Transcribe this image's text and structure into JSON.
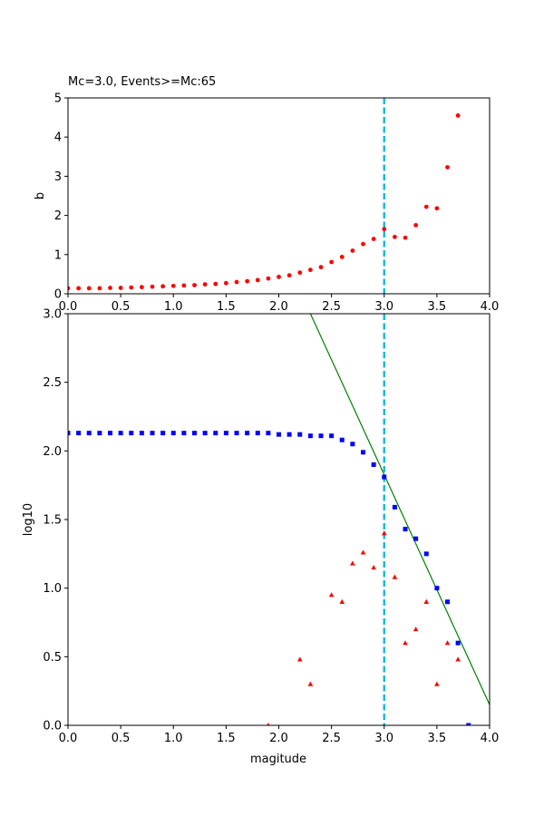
{
  "chart_data": [
    {
      "type": "scatter",
      "title": "Mc=3.0, Events>=Mc:65",
      "xlabel": "",
      "ylabel": "b",
      "xlim": [
        0,
        4
      ],
      "ylim": [
        0,
        5
      ],
      "xticks": [
        "0.0",
        "0.5",
        "1.0",
        "1.5",
        "2.0",
        "2.5",
        "3.0",
        "3.5",
        "4.0"
      ],
      "yticks": [
        "0",
        "1",
        "2",
        "3",
        "4",
        "5"
      ],
      "vline": {
        "x": 3.0,
        "color": "#17becf",
        "style": "dashed"
      },
      "series": [
        {
          "marker": "dot",
          "color": "#ff0000",
          "x": [
            0.0,
            0.1,
            0.2,
            0.3,
            0.4,
            0.5,
            0.6,
            0.7,
            0.8,
            0.9,
            1.0,
            1.1,
            1.2,
            1.3,
            1.4,
            1.5,
            1.6,
            1.7,
            1.8,
            1.9,
            2.0,
            2.1,
            2.2,
            2.3,
            2.4,
            2.5,
            2.6,
            2.7,
            2.8,
            2.9,
            3.0,
            3.1,
            3.2,
            3.3,
            3.4,
            3.5,
            3.6,
            3.7
          ],
          "y": [
            0.14,
            0.14,
            0.14,
            0.14,
            0.15,
            0.15,
            0.16,
            0.17,
            0.18,
            0.19,
            0.2,
            0.21,
            0.22,
            0.24,
            0.25,
            0.27,
            0.3,
            0.32,
            0.35,
            0.39,
            0.43,
            0.47,
            0.54,
            0.61,
            0.68,
            0.81,
            0.94,
            1.1,
            1.27,
            1.4,
            1.65,
            1.45,
            1.43,
            1.75,
            2.22,
            2.18,
            3.23,
            4.55
          ]
        }
      ]
    },
    {
      "type": "scatter",
      "title": "",
      "xlabel": "magitude",
      "ylabel": "log10",
      "xlim": [
        0,
        4
      ],
      "ylim": [
        0,
        3
      ],
      "xticks": [
        "0.0",
        "0.5",
        "1.0",
        "1.5",
        "2.0",
        "2.5",
        "3.0",
        "3.5",
        "4.0"
      ],
      "yticks": [
        "0.0",
        "0.5",
        "1.0",
        "1.5",
        "2.0",
        "2.5",
        "3.0"
      ],
      "vline": {
        "x": 3.0,
        "color": "#17becf",
        "style": "dashed"
      },
      "fit_line": {
        "color": "#008000",
        "x": [
          2.3,
          4.0
        ],
        "y": [
          3.0,
          0.15
        ]
      },
      "series": [
        {
          "marker": "square",
          "color": "#0000ff",
          "x": [
            0.0,
            0.1,
            0.2,
            0.3,
            0.4,
            0.5,
            0.6,
            0.7,
            0.8,
            0.9,
            1.0,
            1.1,
            1.2,
            1.3,
            1.4,
            1.5,
            1.6,
            1.7,
            1.8,
            1.9,
            2.0,
            2.1,
            2.2,
            2.3,
            2.4,
            2.5,
            2.6,
            2.7,
            2.8,
            2.9,
            3.0,
            3.1,
            3.2,
            3.3,
            3.4,
            3.5,
            3.6,
            3.7,
            3.8
          ],
          "y": [
            2.13,
            2.13,
            2.13,
            2.13,
            2.13,
            2.13,
            2.13,
            2.13,
            2.13,
            2.13,
            2.13,
            2.13,
            2.13,
            2.13,
            2.13,
            2.13,
            2.13,
            2.13,
            2.13,
            2.13,
            2.12,
            2.12,
            2.12,
            2.11,
            2.11,
            2.11,
            2.08,
            2.05,
            1.99,
            1.9,
            1.81,
            1.59,
            1.43,
            1.36,
            1.25,
            1.0,
            0.9,
            0.6,
            0.0
          ]
        },
        {
          "marker": "triangle",
          "color": "#ff0000",
          "x": [
            1.9,
            2.2,
            2.3,
            2.5,
            2.6,
            2.7,
            2.8,
            2.9,
            3.0,
            3.1,
            3.2,
            3.3,
            3.4,
            3.5,
            3.6,
            3.7
          ],
          "y": [
            0.0,
            0.48,
            0.3,
            0.95,
            0.9,
            1.18,
            1.26,
            1.15,
            1.4,
            1.08,
            0.6,
            0.7,
            0.9,
            0.3,
            0.6,
            0.48
          ]
        }
      ]
    }
  ]
}
